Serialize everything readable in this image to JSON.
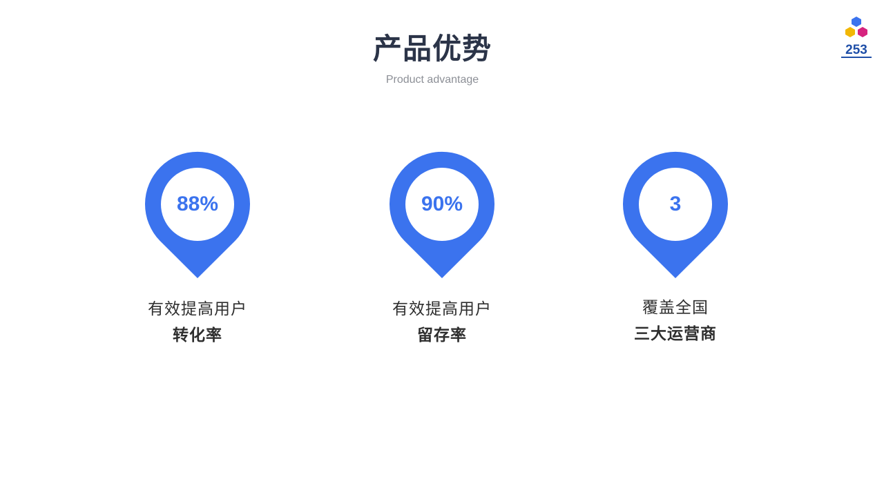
{
  "header": {
    "title": "产品优势",
    "subtitle": "Product advantage"
  },
  "logo": {
    "text": "253",
    "colors": [
      "#3b73ee",
      "#f2b705",
      "#d6237e"
    ]
  },
  "stats": [
    {
      "value": "88%",
      "line1": "有效提高用户",
      "line2": "转化率"
    },
    {
      "value": "90%",
      "line1": "有效提高用户",
      "line2": "留存率"
    },
    {
      "value": "3",
      "line1": "覆盖全国",
      "line2": "三大运营商"
    }
  ],
  "theme": {
    "accent": "#3b73ee",
    "title_color": "#2b3448",
    "text_color": "#2e2e2e",
    "subtitle_color": "#8c8f96"
  }
}
